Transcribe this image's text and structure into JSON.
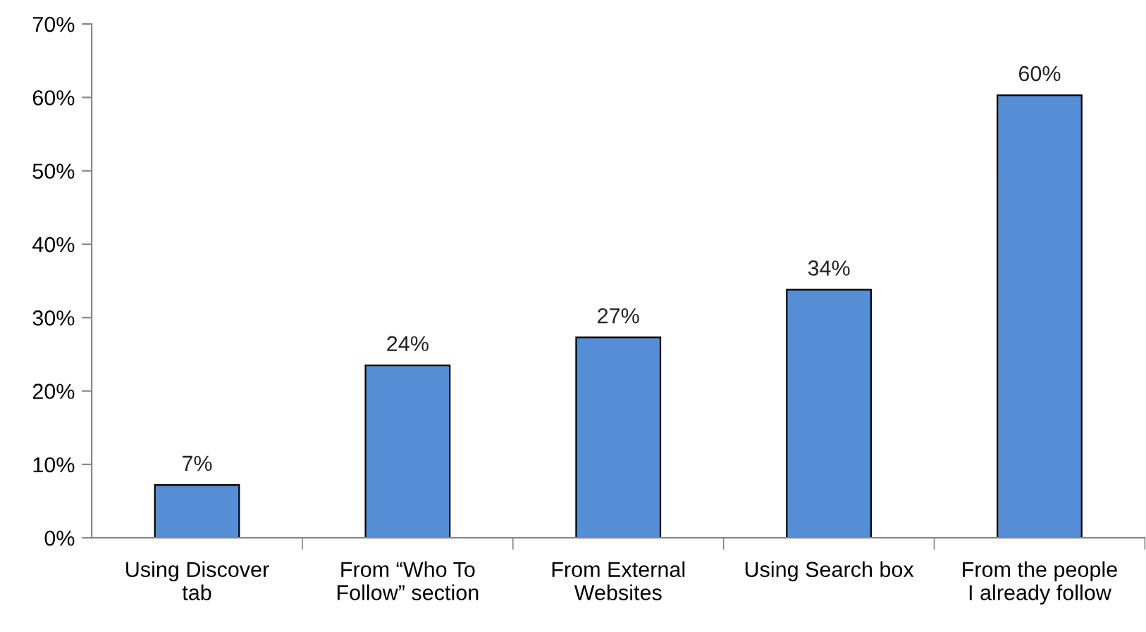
{
  "chart_data": {
    "type": "bar",
    "categories": [
      "Using Discover\ntab",
      "From “Who To\nFollow” section",
      "From External\nWebsites",
      "Using Search box",
      "From the people\nI already follow"
    ],
    "values": [
      7.2,
      23.5,
      27.3,
      33.8,
      60.3
    ],
    "value_labels": [
      "7%",
      "24%",
      "27%",
      "34%",
      "60%"
    ],
    "color": "#558ed5",
    "ylim": [
      0,
      70
    ],
    "yticks": [
      {
        "value": 0,
        "label": "0%"
      },
      {
        "value": 10,
        "label": "10%"
      },
      {
        "value": 20,
        "label": "20%"
      },
      {
        "value": 30,
        "label": "30%"
      },
      {
        "value": 40,
        "label": "40%"
      },
      {
        "value": 50,
        "label": "50%"
      },
      {
        "value": 60,
        "label": "60%"
      },
      {
        "value": 70,
        "label": "70%"
      }
    ],
    "grid": false,
    "legend": false
  }
}
